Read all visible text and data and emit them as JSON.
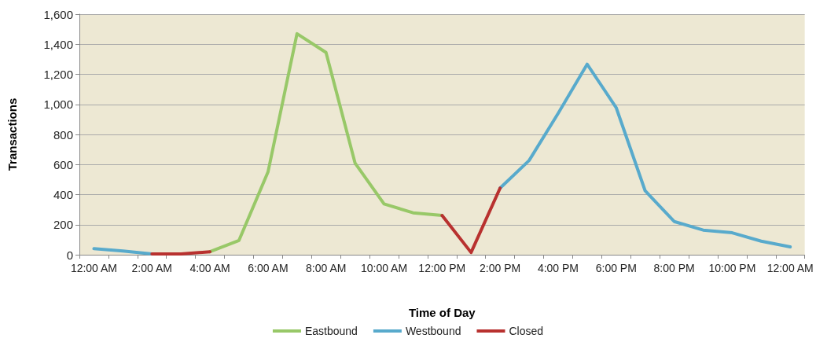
{
  "chart_data": {
    "type": "line",
    "xlabel": "Time of Day",
    "ylabel": "Transactions",
    "categories": [
      "12:00 AM",
      null,
      "2:00 AM",
      null,
      "4:00 AM",
      null,
      "6:00 AM",
      null,
      "8:00 AM",
      null,
      "10:00 AM",
      null,
      "12:00 PM",
      null,
      "2:00 PM",
      null,
      "4:00 PM",
      null,
      "6:00 PM",
      null,
      "8:00 PM",
      null,
      "10:00 PM",
      null,
      "12:00 AM"
    ],
    "series": [
      {
        "name": "Eastbound",
        "color": "#98c868",
        "values": [
          null,
          null,
          null,
          null,
          20,
          95,
          550,
          1470,
          1345,
          610,
          338,
          279,
          261,
          null,
          null,
          null,
          null,
          null,
          null,
          null,
          null,
          null,
          null,
          null,
          null
        ]
      },
      {
        "name": "Westbound",
        "color": "#58aacc",
        "values": [
          40,
          25,
          5,
          null,
          null,
          null,
          null,
          null,
          null,
          null,
          null,
          null,
          null,
          null,
          443,
          627,
          940,
          1267,
          979,
          425,
          221,
          164,
          146,
          90,
          52
        ]
      },
      {
        "name": "Closed",
        "color": "#b8312f",
        "values": [
          null,
          null,
          5,
          5,
          20,
          null,
          null,
          null,
          null,
          null,
          null,
          null,
          261,
          15,
          443,
          null,
          null,
          null,
          null,
          null,
          null,
          null,
          null,
          null,
          null
        ]
      }
    ],
    "ylim": [
      0,
      1600
    ],
    "yticks": [
      0,
      200,
      400,
      600,
      800,
      {
        "value": 1000,
        "label": "1,000"
      },
      {
        "value": 1200,
        "label": "1,200"
      },
      {
        "value": 1400,
        "label": "1,400"
      },
      {
        "value": 1600,
        "label": "1,600"
      }
    ],
    "grid": "y",
    "legend": "bottom",
    "marker": "none",
    "line_style": "solid"
  }
}
